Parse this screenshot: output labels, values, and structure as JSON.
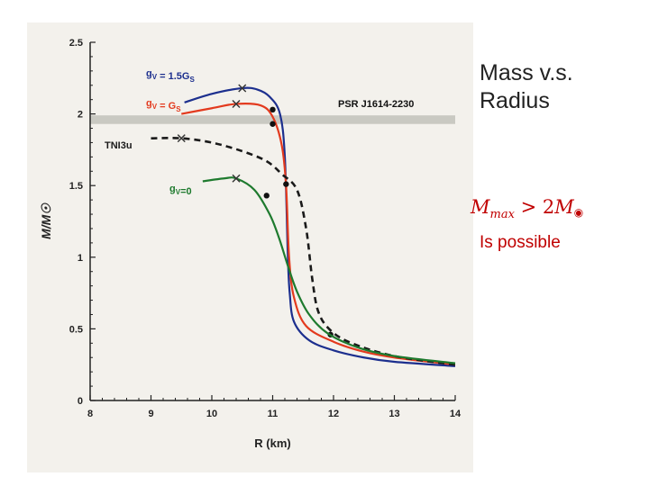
{
  "side_panel": {
    "title_line1": "Mass v.s.",
    "title_line2": "Radius",
    "formula_lhs": "M",
    "formula_lhs_sub": "max",
    "formula_op": " > 2",
    "formula_rhs": "M",
    "formula_rhs_sub": "◉",
    "note": "Is possible"
  },
  "colors": {
    "blue": "#1c2f8e",
    "red": "#e33a1e",
    "black": "#1a1a1a",
    "green": "#1e7a2e",
    "band": "#c9c9c2",
    "formula": "#c00000"
  },
  "chart_data": {
    "type": "line",
    "title": "",
    "xlabel": "R (km)",
    "ylabel": "M/M☉",
    "xlim": [
      8,
      14
    ],
    "ylim": [
      0,
      2.5
    ],
    "x_ticks": [
      "8",
      "9",
      "10",
      "11",
      "12",
      "13",
      "14"
    ],
    "y_ticks": [
      "0",
      "0.5",
      "1",
      "1.5",
      "2",
      "2.5"
    ],
    "grid": false,
    "band": {
      "label": "PSR J1614-2230",
      "y_range": [
        1.93,
        1.99
      ]
    },
    "series": [
      {
        "name": "gV = 1.5Gs",
        "color": "blue",
        "style": "solid",
        "points": [
          [
            9.55,
            2.08
          ],
          [
            10.0,
            2.14
          ],
          [
            10.5,
            2.18
          ],
          [
            10.75,
            2.17
          ],
          [
            10.95,
            2.12
          ],
          [
            11.12,
            2.0
          ],
          [
            11.2,
            1.7
          ],
          [
            11.25,
            1.0
          ],
          [
            11.28,
            0.75
          ],
          [
            11.35,
            0.55
          ],
          [
            11.6,
            0.42
          ],
          [
            12.0,
            0.35
          ],
          [
            12.5,
            0.3
          ],
          [
            13.0,
            0.27
          ],
          [
            14.0,
            0.24
          ]
        ],
        "max_marker": [
          10.5,
          2.18
        ],
        "dots": [
          [
            11.0,
            2.03
          ]
        ]
      },
      {
        "name": "gV = Gs",
        "color": "red",
        "style": "solid",
        "points": [
          [
            9.5,
            2.0
          ],
          [
            10.0,
            2.04
          ],
          [
            10.4,
            2.07
          ],
          [
            10.8,
            2.06
          ],
          [
            11.0,
            1.98
          ],
          [
            11.15,
            1.78
          ],
          [
            11.22,
            1.5
          ],
          [
            11.27,
            1.0
          ],
          [
            11.35,
            0.72
          ],
          [
            11.55,
            0.52
          ],
          [
            12.0,
            0.41
          ],
          [
            12.5,
            0.34
          ],
          [
            13.0,
            0.3
          ],
          [
            14.0,
            0.25
          ]
        ],
        "max_marker": [
          10.4,
          2.07
        ],
        "dots": [
          [
            11.0,
            1.93
          ]
        ]
      },
      {
        "name": "TNI3u",
        "color": "black",
        "style": "dashed",
        "points": [
          [
            9.0,
            1.83
          ],
          [
            9.5,
            1.83
          ],
          [
            10.0,
            1.8
          ],
          [
            10.5,
            1.74
          ],
          [
            10.9,
            1.67
          ],
          [
            11.15,
            1.58
          ],
          [
            11.4,
            1.47
          ],
          [
            11.55,
            1.2
          ],
          [
            11.65,
            0.85
          ],
          [
            11.75,
            0.62
          ],
          [
            11.95,
            0.49
          ],
          [
            12.3,
            0.4
          ],
          [
            13.0,
            0.31
          ],
          [
            14.0,
            0.25
          ]
        ],
        "max_marker": [
          9.5,
          1.83
        ],
        "dots": [
          [
            11.95,
            0.46
          ]
        ]
      },
      {
        "name": "gV=0",
        "color": "green",
        "style": "solid",
        "points": [
          [
            9.85,
            1.53
          ],
          [
            10.2,
            1.55
          ],
          [
            10.4,
            1.55
          ],
          [
            10.7,
            1.47
          ],
          [
            10.95,
            1.3
          ],
          [
            11.1,
            1.14
          ],
          [
            11.25,
            0.94
          ],
          [
            11.4,
            0.76
          ],
          [
            11.6,
            0.6
          ],
          [
            11.9,
            0.47
          ],
          [
            12.4,
            0.37
          ],
          [
            13.0,
            0.31
          ],
          [
            14.0,
            0.26
          ]
        ],
        "max_marker": [
          10.4,
          1.55
        ],
        "dots": [
          [
            10.9,
            1.43
          ],
          [
            11.22,
            1.51
          ]
        ]
      }
    ],
    "annotations": [
      {
        "text": "gV = 1.5GS",
        "series_color": "blue"
      },
      {
        "text": "gV = GS",
        "series_color": "red"
      },
      {
        "text": "TNI3u",
        "series_color": "black"
      },
      {
        "text": "gV=0",
        "series_color": "green"
      },
      {
        "text": "PSR J1614-2230",
        "series_color": "black"
      }
    ]
  }
}
